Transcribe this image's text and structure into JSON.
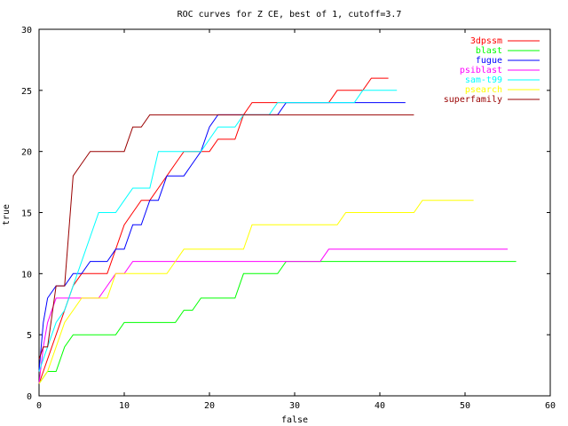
{
  "chart_data": {
    "type": "line",
    "title": "ROC curves for Z CE, best of 1, cutoff=3.7",
    "xlabel": "false",
    "ylabel": "true",
    "xlim": [
      0,
      60
    ],
    "ylim": [
      0,
      30
    ],
    "xticks": [
      0,
      10,
      20,
      30,
      40,
      50,
      60
    ],
    "yticks": [
      0,
      5,
      10,
      15,
      20,
      25,
      30
    ],
    "grid": false,
    "legend_position": "top-right",
    "series": [
      {
        "name": "3dpssm",
        "color": "#ff0000",
        "points": [
          [
            0,
            1
          ],
          [
            0.5,
            2
          ],
          [
            1,
            3
          ],
          [
            2,
            5
          ],
          [
            3,
            7
          ],
          [
            4,
            9
          ],
          [
            5,
            10
          ],
          [
            6,
            10
          ],
          [
            7,
            10
          ],
          [
            8,
            10
          ],
          [
            9,
            12
          ],
          [
            10,
            14
          ],
          [
            11,
            15
          ],
          [
            12,
            16
          ],
          [
            13,
            16
          ],
          [
            14,
            17
          ],
          [
            15,
            18
          ],
          [
            16,
            19
          ],
          [
            17,
            20
          ],
          [
            19,
            20
          ],
          [
            20,
            20
          ],
          [
            21,
            21
          ],
          [
            22,
            21
          ],
          [
            23,
            21
          ],
          [
            24,
            23
          ],
          [
            25,
            24
          ],
          [
            28,
            24
          ],
          [
            30,
            24
          ],
          [
            31,
            24
          ],
          [
            33,
            24
          ],
          [
            34,
            24
          ],
          [
            35,
            25
          ],
          [
            37,
            25
          ],
          [
            38,
            25
          ],
          [
            39,
            26
          ],
          [
            40,
            26
          ],
          [
            41,
            26
          ]
        ]
      },
      {
        "name": "blast",
        "color": "#00ff00",
        "points": [
          [
            0,
            1
          ],
          [
            1,
            2
          ],
          [
            2,
            2
          ],
          [
            3,
            4
          ],
          [
            4,
            5
          ],
          [
            5,
            5
          ],
          [
            6,
            5
          ],
          [
            7,
            5
          ],
          [
            8,
            5
          ],
          [
            9,
            5
          ],
          [
            10,
            6
          ],
          [
            11,
            6
          ],
          [
            14,
            6
          ],
          [
            16,
            6
          ],
          [
            17,
            7
          ],
          [
            18,
            7
          ],
          [
            19,
            8
          ],
          [
            20,
            8
          ],
          [
            23,
            8
          ],
          [
            24,
            10
          ],
          [
            25,
            10
          ],
          [
            28,
            10
          ],
          [
            29,
            11
          ],
          [
            35,
            11
          ],
          [
            40,
            11
          ],
          [
            45,
            11
          ],
          [
            50,
            11
          ],
          [
            56,
            11
          ]
        ]
      },
      {
        "name": "fugue",
        "color": "#0000ff",
        "points": [
          [
            0,
            2
          ],
          [
            0.5,
            6
          ],
          [
            1,
            8
          ],
          [
            2,
            9
          ],
          [
            3,
            9
          ],
          [
            4,
            10
          ],
          [
            5,
            10
          ],
          [
            6,
            11
          ],
          [
            7,
            11
          ],
          [
            8,
            11
          ],
          [
            9,
            12
          ],
          [
            10,
            12
          ],
          [
            11,
            14
          ],
          [
            12,
            14
          ],
          [
            13,
            16
          ],
          [
            14,
            16
          ],
          [
            15,
            18
          ],
          [
            16,
            18
          ],
          [
            17,
            18
          ],
          [
            18,
            19
          ],
          [
            19,
            20
          ],
          [
            20,
            22
          ],
          [
            21,
            23
          ],
          [
            24,
            23
          ],
          [
            28,
            23
          ],
          [
            29,
            24
          ],
          [
            30,
            24
          ],
          [
            35,
            24
          ],
          [
            40,
            24
          ],
          [
            43,
            24
          ]
        ]
      },
      {
        "name": "psiblast",
        "color": "#ff00ff",
        "points": [
          [
            0,
            1
          ],
          [
            0.5,
            4
          ],
          [
            1,
            6
          ],
          [
            2,
            8
          ],
          [
            3,
            8
          ],
          [
            4,
            8
          ],
          [
            5,
            8
          ],
          [
            6,
            8
          ],
          [
            7,
            8
          ],
          [
            8,
            9
          ],
          [
            9,
            10
          ],
          [
            10,
            10
          ],
          [
            11,
            11
          ],
          [
            12,
            11
          ],
          [
            15,
            11
          ],
          [
            20,
            11
          ],
          [
            25,
            11
          ],
          [
            30,
            11
          ],
          [
            33,
            11
          ],
          [
            34,
            12
          ],
          [
            38,
            12
          ],
          [
            42,
            12
          ],
          [
            47,
            12
          ],
          [
            50,
            12
          ],
          [
            55,
            12
          ]
        ]
      },
      {
        "name": "sam-t99",
        "color": "#00ffff",
        "points": [
          [
            0,
            2
          ],
          [
            1,
            4
          ],
          [
            2,
            6
          ],
          [
            3,
            7
          ],
          [
            4,
            9
          ],
          [
            5,
            11
          ],
          [
            6,
            13
          ],
          [
            7,
            15
          ],
          [
            8,
            15
          ],
          [
            9,
            15
          ],
          [
            10,
            16
          ],
          [
            11,
            17
          ],
          [
            12,
            17
          ],
          [
            13,
            17
          ],
          [
            14,
            20
          ],
          [
            15,
            20
          ],
          [
            16,
            20
          ],
          [
            17,
            20
          ],
          [
            18,
            20
          ],
          [
            19,
            20
          ],
          [
            20,
            21
          ],
          [
            21,
            22
          ],
          [
            22,
            22
          ],
          [
            23,
            22
          ],
          [
            24,
            23
          ],
          [
            25,
            23
          ],
          [
            27,
            23
          ],
          [
            28,
            24
          ],
          [
            29,
            24
          ],
          [
            31,
            24
          ],
          [
            34,
            24
          ],
          [
            37,
            24
          ],
          [
            38,
            25
          ],
          [
            40,
            25
          ],
          [
            42,
            25
          ]
        ]
      },
      {
        "name": "psearch",
        "color": "#ffff00",
        "points": [
          [
            0,
            1
          ],
          [
            1,
            2
          ],
          [
            2,
            4
          ],
          [
            3,
            6
          ],
          [
            4,
            7
          ],
          [
            5,
            8
          ],
          [
            6,
            8
          ],
          [
            7,
            8
          ],
          [
            8,
            8
          ],
          [
            9,
            10
          ],
          [
            10,
            10
          ],
          [
            11,
            10
          ],
          [
            12,
            10
          ],
          [
            14,
            10
          ],
          [
            15,
            10
          ],
          [
            16,
            11
          ],
          [
            17,
            12
          ],
          [
            18,
            12
          ],
          [
            22,
            12
          ],
          [
            24,
            12
          ],
          [
            25,
            14
          ],
          [
            26,
            14
          ],
          [
            30,
            14
          ],
          [
            33,
            14
          ],
          [
            35,
            14
          ],
          [
            36,
            15
          ],
          [
            40,
            15
          ],
          [
            44,
            15
          ],
          [
            45,
            16
          ],
          [
            48,
            16
          ],
          [
            51,
            16
          ]
        ]
      },
      {
        "name": "superfamily",
        "color": "#990000",
        "points": [
          [
            0,
            3
          ],
          [
            0.5,
            4
          ],
          [
            1,
            4
          ],
          [
            2,
            9
          ],
          [
            3,
            9
          ],
          [
            4,
            18
          ],
          [
            5,
            19
          ],
          [
            6,
            20
          ],
          [
            7,
            20
          ],
          [
            8,
            20
          ],
          [
            9,
            20
          ],
          [
            10,
            20
          ],
          [
            11,
            22
          ],
          [
            12,
            22
          ],
          [
            13,
            23
          ],
          [
            14,
            23
          ],
          [
            20,
            23
          ],
          [
            25,
            23
          ],
          [
            30,
            23
          ],
          [
            35,
            23
          ],
          [
            40,
            23
          ],
          [
            44,
            23
          ]
        ]
      }
    ]
  }
}
